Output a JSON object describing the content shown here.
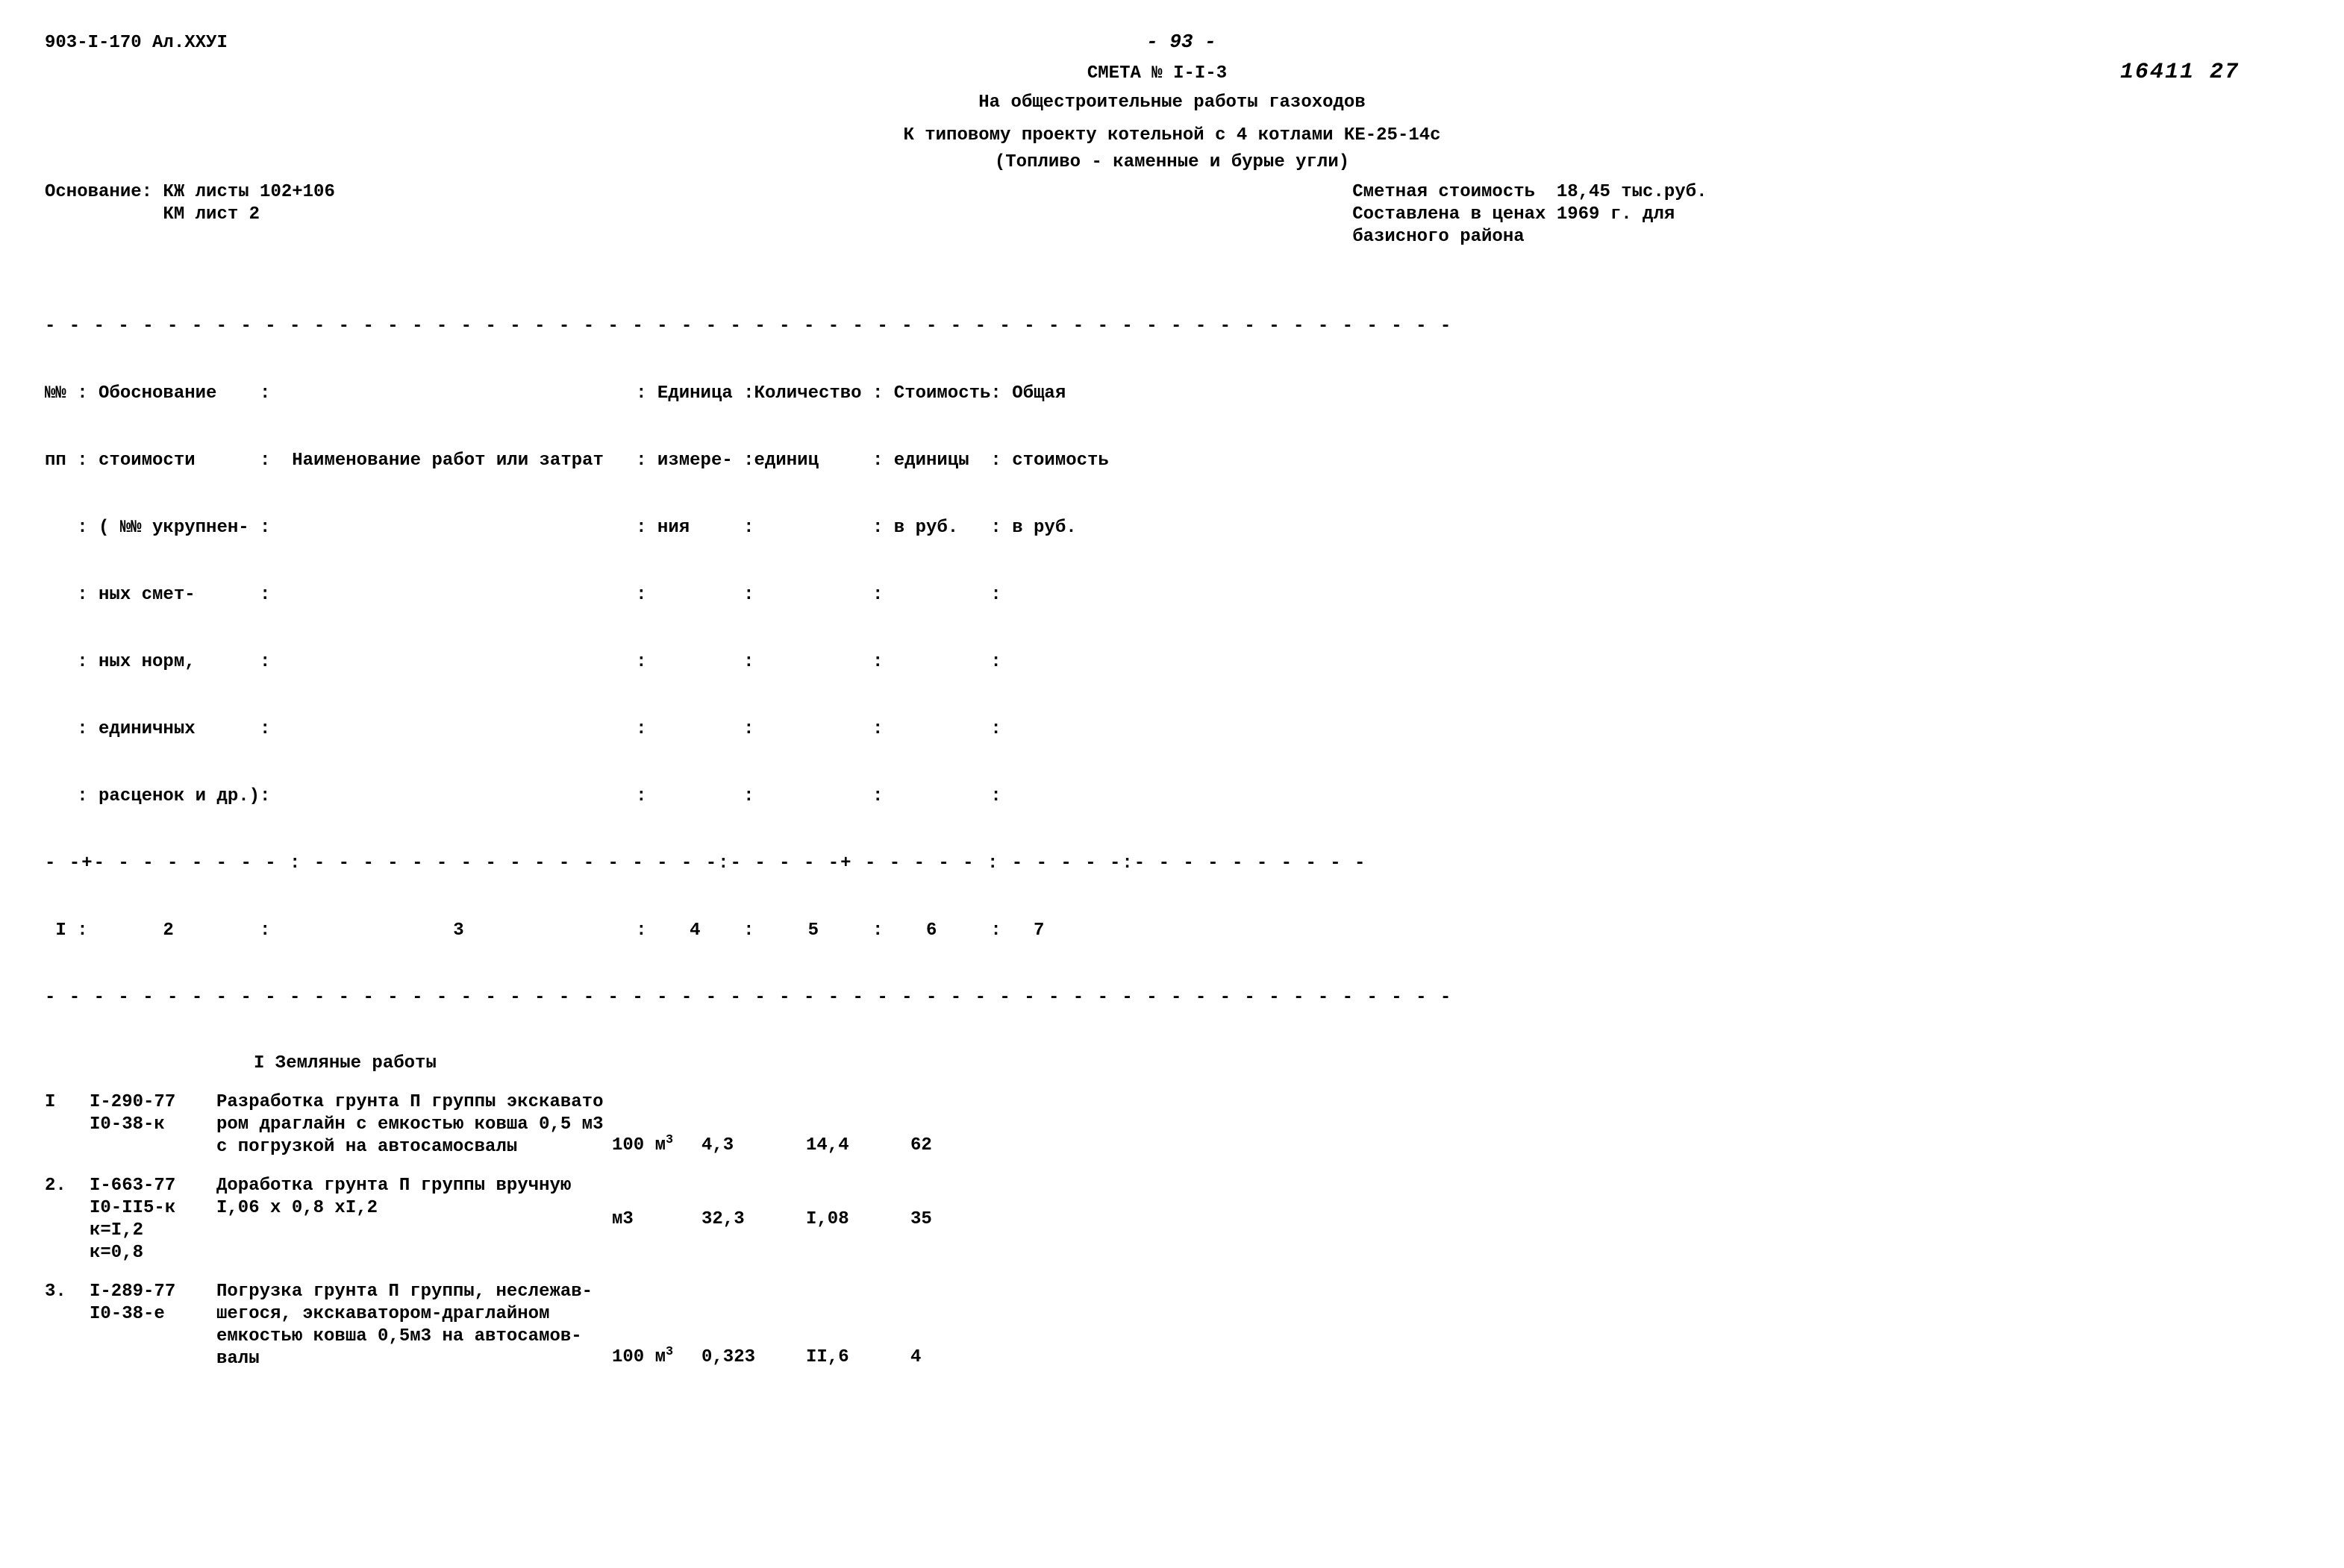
{
  "header": {
    "doc_code": "903-I-170 Ал.XXУI",
    "page_marker": "- 93 -",
    "smeta_no": "СМЕТА № I-I-3",
    "right_code": "16411 27",
    "title1": "На общестроительные работы газоходов",
    "title2": "К типовому проекту котельной с 4 котлами КЕ-25-14с",
    "title3": "(Топливо - каменные и бурые угли)",
    "basis_left": "Основание: КЖ листы 102+106\n           КМ лист 2",
    "basis_right": "Сметная стоимость  18,45 тыс.руб.\nСоставлена в ценах 1969 г. для\nбазисного района"
  },
  "table_header": {
    "dash": "- - - - - - - - - - - - - - - - - - - - - - - - - - - - - - - - - - - - - - - - - - - - - - - - - - - - - - - - - -",
    "l1": "№№ : Обоснование    :                                  : Единица :Количество : Стоимость: Общая",
    "l2": "пп : стоимости      :  Наименование работ или затрат   : измере- :единиц     : единицы  : стоимость",
    "l3": "   : ( №№ укрупнен- :                                  : ния     :           : в руб.   : в руб.",
    "l4": "   : ных смет-      :                                  :         :           :          :",
    "l5": "   : ных норм,      :                                  :         :           :          :",
    "l6": "   : единичных      :                                  :         :           :          :",
    "l7": "   : расценок и др.):                                  :         :           :          :",
    "mid": "- -+- - - - - - - - : - - - - - - - - - - - - - - - - -:- - - - -+ - - - - - : - - - - -:- - - - - - - - - -",
    "nums": " I :       2        :                 3                :    4    :     5     :    6     :   7",
    "bot": "- - - - - - - - - - - - - - - - - - - - - - - - - - - - - - - - - - - - - - - - - - - - - - - - - - - - - - - - - -"
  },
  "section": "I Земляные работы",
  "rows": [
    {
      "n": "I",
      "basis": "I-290-77\nI0-38-к",
      "desc": "Разработка грунта П группы экскавато\nром драглайн с емкостью ковша 0,5 м3\nс погрузкой на автосамосвалы",
      "unit_html": "100 м<sup>3</sup>",
      "qty": "4,3",
      "price": "14,4",
      "total": "62"
    },
    {
      "n": "2.",
      "basis": "I-663-77\nI0-II5-к\nк=I,2\nк=0,8",
      "desc": "Доработка грунта П группы вручную\nI,06 х 0,8 хI,2",
      "unit_html": "м3",
      "qty": "32,3",
      "price": "I,08",
      "total": "35"
    },
    {
      "n": "3.",
      "basis": "I-289-77\nI0-38-е",
      "desc": "Погрузка грунта П группы, неслежав-\nшегося, экскаватором-драглайном\nемкостью ковша 0,5м3 на автосамов-\nвалы",
      "unit_html": "100 м<sup>3</sup>",
      "qty": "0,323",
      "price": "II,6",
      "total": "4"
    }
  ]
}
